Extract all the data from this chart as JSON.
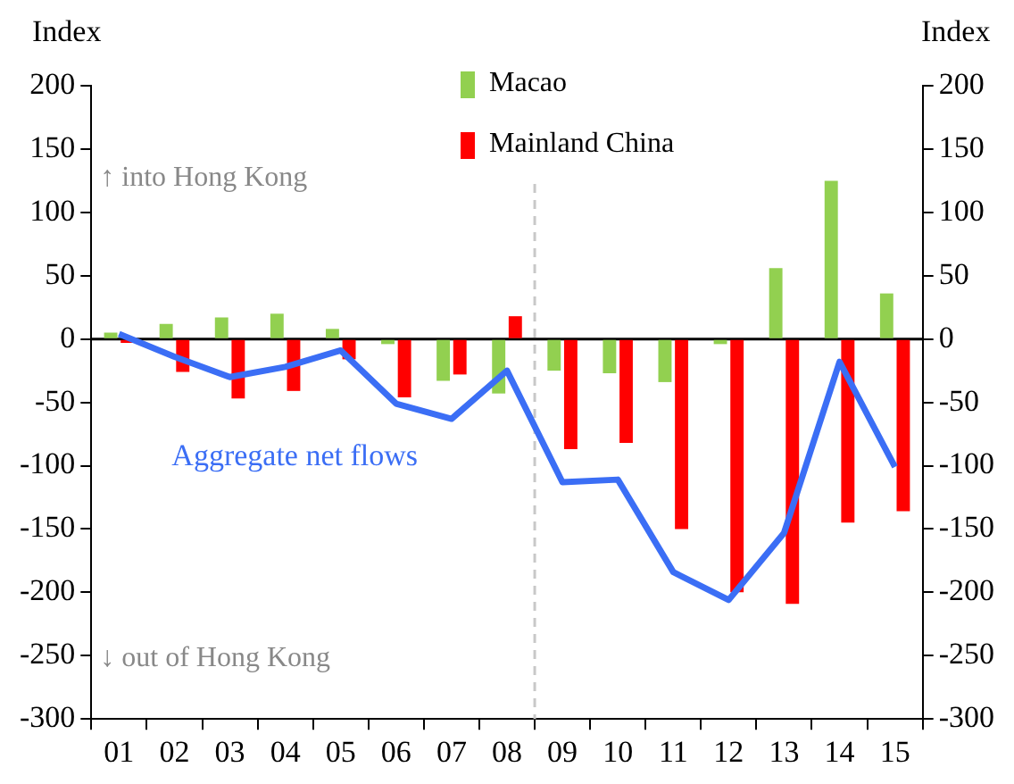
{
  "chart_data": {
    "type": "bar",
    "ylabel": "Index",
    "y2label": "Index",
    "categories": [
      "01",
      "02",
      "03",
      "04",
      "05",
      "06",
      "07",
      "08",
      "09",
      "10",
      "11",
      "12",
      "13",
      "14",
      "15"
    ],
    "series": [
      {
        "name": "Macao",
        "color": "#92d050",
        "values": [
          5,
          12,
          17,
          20,
          8,
          -4,
          -33,
          -43,
          -25,
          -27,
          -34,
          -4,
          56,
          125,
          36
        ]
      },
      {
        "name": "Mainland China",
        "color": "#ff0000",
        "values": [
          -3,
          -26,
          -47,
          -41,
          -16,
          -46,
          -28,
          18,
          -87,
          -82,
          -150,
          -200,
          -209,
          -145,
          -136
        ]
      },
      {
        "name": "Aggregate net flows",
        "type": "line",
        "color": "#3b6ef5",
        "values": [
          4,
          -14,
          -30,
          -22,
          -9,
          -51,
          -63,
          -25,
          -113,
          -111,
          -184,
          -206,
          -153,
          -18,
          -101
        ]
      }
    ],
    "ylim": [
      -300,
      200
    ],
    "yticks": [
      -300,
      -250,
      -200,
      -150,
      -100,
      -50,
      0,
      50,
      100,
      150,
      200
    ],
    "y2lim": [
      -300,
      200
    ],
    "y2ticks": [
      -300,
      -250,
      -200,
      -150,
      -100,
      -50,
      0,
      50,
      100,
      150,
      200
    ],
    "ref_lines": [
      {
        "axis": "x",
        "value": "09",
        "color": "#c8c8c8",
        "line_style": "dashed"
      }
    ],
    "annotations": [
      "↑ into Hong Kong",
      "↓ out of Hong Kong"
    ],
    "legend": "top",
    "grid": false
  }
}
